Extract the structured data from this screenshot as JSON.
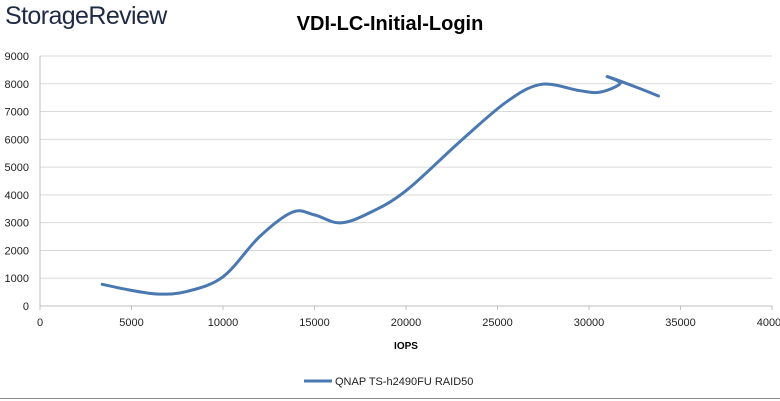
{
  "brand": {
    "logo_text": "StorageReview"
  },
  "chart_data": {
    "type": "line",
    "title": "VDI-LC-Initial-Login",
    "xlabel": "IOPS",
    "ylabel": "",
    "xlim": [
      0,
      40000
    ],
    "ylim": [
      0,
      9000
    ],
    "x_ticks": [
      "0",
      "5000",
      "10000",
      "15000",
      "20000",
      "25000",
      "30000",
      "35000",
      "40000"
    ],
    "y_ticks": [
      "0",
      "1000",
      "2000",
      "3000",
      "4000",
      "5000",
      "6000",
      "7000",
      "8000",
      "9000"
    ],
    "grid": {
      "horizontal": true,
      "vertical": false
    },
    "legend_position": "bottom",
    "series": [
      {
        "name": "QNAP TS-h2490FU RAID50",
        "color": "#4a78b0",
        "points": [
          [
            3400,
            780
          ],
          [
            5000,
            560
          ],
          [
            6500,
            430
          ],
          [
            8000,
            520
          ],
          [
            10000,
            1050
          ],
          [
            12000,
            2500
          ],
          [
            13800,
            3380
          ],
          [
            15000,
            3280
          ],
          [
            16400,
            2990
          ],
          [
            18000,
            3350
          ],
          [
            20000,
            4150
          ],
          [
            23000,
            5950
          ],
          [
            25500,
            7350
          ],
          [
            27400,
            7980
          ],
          [
            29500,
            7750
          ],
          [
            30600,
            7700
          ],
          [
            31700,
            8010
          ],
          [
            31000,
            8260
          ],
          [
            32500,
            7900
          ],
          [
            33800,
            7560
          ]
        ]
      }
    ]
  }
}
